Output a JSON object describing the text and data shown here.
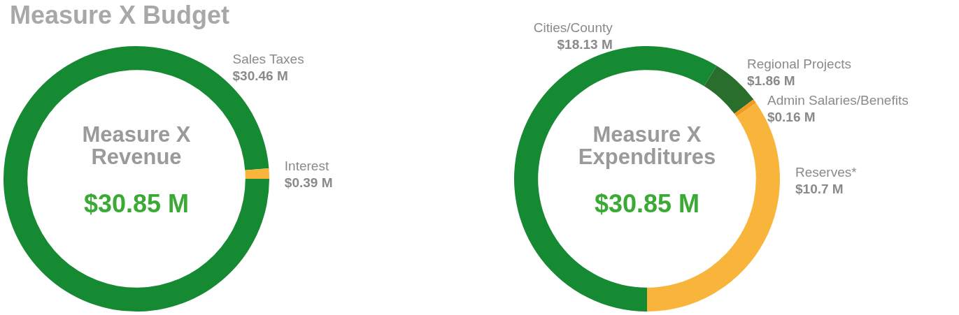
{
  "chart_data": [
    {
      "type": "donut",
      "title": "Measure X Revenue",
      "subtitle": "$30.85 M",
      "annotations": [
        "Measure X Budget"
      ],
      "categories": [
        "Sales Taxes",
        "Interest"
      ],
      "values": [
        30.46,
        0.39
      ],
      "colors": [
        "#168a33",
        "#f9b53b"
      ],
      "value_labels": [
        "$30.46 M",
        "$0.39 M"
      ]
    },
    {
      "type": "donut",
      "title": "Measure X Expenditures",
      "subtitle": "$30.85 M",
      "categories": [
        "Cities/County",
        "Regional Projects",
        "Admin Salaries/Benefits",
        "Reserves*"
      ],
      "values": [
        18.13,
        1.86,
        0.16,
        10.7
      ],
      "colors": [
        "#168a33",
        "#2a6e2e",
        "#f39a1e",
        "#f9b53b"
      ],
      "value_labels": [
        "$18.13 M",
        "$1.86 M",
        "$0.16 M",
        "$10.7 M"
      ]
    }
  ]
}
